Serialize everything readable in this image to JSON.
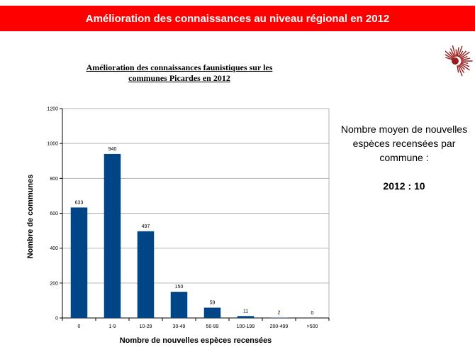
{
  "header": {
    "title": "Amélioration des connaissances au niveau régional en 2012"
  },
  "side_panel": {
    "text": "Nombre moyen de nouvelles espèces recensées par commune :",
    "average": "2012 : 10"
  },
  "logo": {
    "icon": "hedgehog-logo-icon",
    "color": "#9b1c1c"
  },
  "colors": {
    "banner": "#ff0000",
    "bar": "#004586",
    "grid": "#b3b3b3"
  },
  "chart_data": {
    "type": "bar",
    "title_line1": "Amélioration des connaissances faunistiques sur les",
    "title_line2": "communes Picardes en 2012",
    "xlabel": "Nombre de nouvelles espèces recensées",
    "ylabel": "Nombre de communes",
    "categories": [
      "0",
      "1-9",
      "10-29",
      "30-49",
      "50-99",
      "100-199",
      "200-499",
      ">500"
    ],
    "values": [
      633,
      940,
      497,
      150,
      59,
      11,
      2,
      0
    ],
    "ylim": [
      0,
      1200
    ],
    "yticks": [
      0,
      200,
      400,
      600,
      800,
      1000,
      1200
    ],
    "grid": true,
    "legend": "none"
  }
}
